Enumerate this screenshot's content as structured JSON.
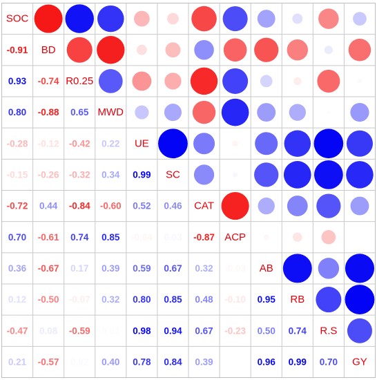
{
  "chart_data": {
    "type": "heatmap",
    "style": "correlation matrix: circles in upper triangle (size and color = r), coefficients in lower triangle, variable names on diagonal",
    "variables": [
      "SOC",
      "BD",
      "R0.25",
      "MWD",
      "UE",
      "SC",
      "CAT",
      "ACP",
      "AB",
      "RB",
      "R.S",
      "GY"
    ],
    "lower_triangle_values": [
      [],
      [
        -0.91
      ],
      [
        0.93,
        -0.74
      ],
      [
        0.8,
        -0.88,
        0.65
      ],
      [
        -0.28,
        -0.12,
        -0.42,
        0.22
      ],
      [
        -0.15,
        -0.26,
        -0.32,
        0.34,
        0.99
      ],
      [
        -0.72,
        0.44,
        -0.84,
        -0.6,
        0.52,
        0.46
      ],
      [
        0.7,
        -0.61,
        0.74,
        0.85,
        -0.04,
        0.03,
        -0.87
      ],
      [
        0.36,
        -0.67,
        0.17,
        0.39,
        0.59,
        0.67,
        0.32,
        -0.03
      ],
      [
        0.12,
        -0.5,
        -0.07,
        0.32,
        0.8,
        0.85,
        0.48,
        -0.1,
        0.95
      ],
      [
        -0.47,
        0.08,
        -0.59,
        0.01,
        0.98,
        0.94,
        0.67,
        -0.23,
        0.5,
        0.74
      ],
      [
        0.21,
        -0.57,
        0.02,
        0.4,
        0.78,
        0.84,
        0.39,
        0.0,
        0.96,
        0.99,
        0.7
      ]
    ],
    "color_scale": {
      "positive": "#0000f5",
      "negative": "#f50000",
      "zero": "#ffffff"
    },
    "value_range": [
      -1,
      1
    ],
    "legend": "none",
    "grid": true
  }
}
